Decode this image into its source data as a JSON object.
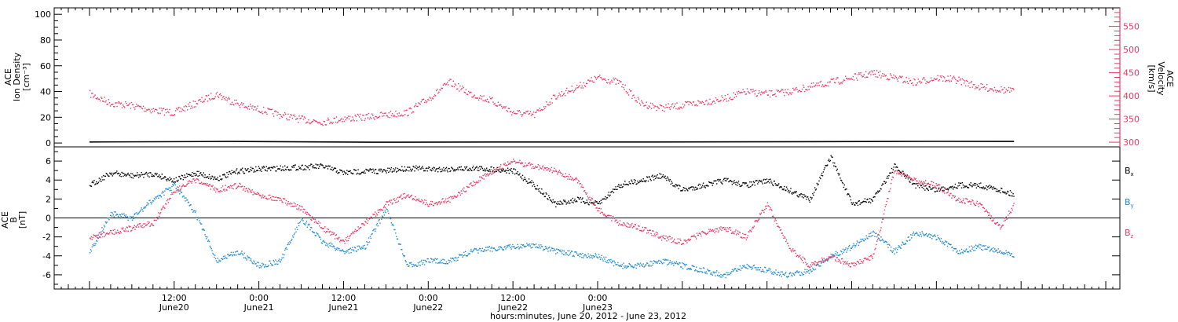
{
  "chart_data": [
    {
      "type": "scatter",
      "ylabel_left": [
        "ACE",
        "Ion Density",
        "[cm⁻³]"
      ],
      "ylabel_right": [
        "ACE",
        "Velocity",
        "[km/s]"
      ],
      "ylim_left": [
        -3,
        105
      ],
      "ylim_right": [
        290,
        590
      ],
      "yticks_left": [
        "0",
        "20",
        "40",
        "60",
        "80",
        "100"
      ],
      "yticks_right": [
        "300",
        "350",
        "400",
        "450",
        "500",
        "550"
      ],
      "series": [
        {
          "axis": "right",
          "color": "#e83a64",
          "x": [
            0,
            3,
            6,
            9,
            12,
            15,
            18,
            20,
            21,
            22,
            24,
            27,
            30,
            33,
            36,
            39,
            42,
            45,
            48,
            51,
            54,
            57,
            60,
            63,
            66,
            69,
            72,
            75,
            78,
            81,
            84,
            87,
            90,
            93,
            96,
            99,
            102,
            105,
            108,
            111,
            114,
            117,
            120,
            123,
            126,
            129,
            131
          ],
          "values": [
            405,
            385,
            380,
            370,
            365,
            385,
            405,
            390,
            385,
            378,
            372,
            360,
            350,
            345,
            352,
            355,
            360,
            365,
            395,
            430,
            405,
            390,
            365,
            360,
            400,
            420,
            440,
            430,
            385,
            375,
            380,
            388,
            395,
            410,
            405,
            410,
            420,
            430,
            440,
            450,
            440,
            430,
            440,
            435,
            420,
            415,
            410
          ]
        },
        {
          "axis": "left",
          "color": "#000000",
          "x": [
            0,
            20,
            40,
            60,
            80,
            100,
            120,
            131
          ],
          "values": [
            0.8,
            1.2,
            0.6,
            0.8,
            0.8,
            1.0,
            1.3,
            1.2
          ]
        }
      ]
    },
    {
      "type": "scatter",
      "ylabel": [
        "ACE",
        "B",
        "[nT]"
      ],
      "ylim": [
        -7.5,
        7.5
      ],
      "yticks": [
        "-6",
        "-4",
        "-2",
        "0",
        "2",
        "4",
        "6"
      ],
      "series": [
        {
          "name": "B",
          "subscript": "x",
          "color": "#000000",
          "x": [
            0,
            3,
            6,
            9,
            12,
            15,
            18,
            21,
            24,
            27,
            30,
            33,
            36,
            39,
            42,
            45,
            48,
            51,
            54,
            57,
            60,
            63,
            66,
            69,
            72,
            75,
            78,
            81,
            84,
            87,
            90,
            93,
            96,
            99,
            102,
            105,
            108,
            111,
            114,
            117,
            120,
            123,
            126,
            129,
            131
          ],
          "values": [
            3.5,
            4.8,
            4.5,
            4.7,
            4.0,
            4.8,
            4.2,
            5.0,
            5.2,
            5.3,
            5.4,
            5.5,
            4.8,
            5.0,
            5.0,
            5.3,
            5.2,
            5.2,
            5.3,
            5.2,
            5.0,
            3.5,
            1.5,
            2.0,
            1.5,
            3.5,
            4.0,
            4.5,
            3.0,
            3.5,
            4.0,
            3.5,
            4.0,
            3.0,
            2.0,
            6.5,
            1.5,
            2.0,
            5.5,
            3.5,
            3.0,
            3.5,
            3.5,
            3.0,
            2.5
          ]
        },
        {
          "name": "B",
          "subscript": "y",
          "color": "#1f8ad6",
          "x": [
            0,
            3,
            6,
            9,
            12,
            15,
            18,
            21,
            24,
            27,
            30,
            33,
            36,
            39,
            42,
            45,
            48,
            51,
            54,
            57,
            60,
            63,
            66,
            69,
            72,
            75,
            78,
            81,
            84,
            87,
            90,
            93,
            96,
            99,
            102,
            105,
            108,
            111,
            114,
            117,
            120,
            123,
            126,
            129,
            131
          ],
          "values": [
            -3.5,
            0.5,
            0.0,
            2.0,
            3.5,
            0.5,
            -4.5,
            -3.5,
            -5.0,
            -4.5,
            0.0,
            -2.5,
            -3.5,
            -3.0,
            1.0,
            -5.0,
            -4.5,
            -4.5,
            -3.5,
            -3.2,
            -3.0,
            -2.8,
            -3.5,
            -3.8,
            -4.0,
            -5.0,
            -5.0,
            -4.5,
            -5.0,
            -5.5,
            -6.0,
            -5.0,
            -5.5,
            -6.0,
            -5.5,
            -4.0,
            -3.0,
            -1.5,
            -3.5,
            -1.5,
            -2.0,
            -3.5,
            -3.0,
            -3.5,
            -4.0
          ]
        },
        {
          "name": "B",
          "subscript": "z",
          "color": "#e83a64",
          "x": [
            0,
            3,
            6,
            9,
            12,
            15,
            18,
            21,
            24,
            27,
            30,
            33,
            36,
            39,
            42,
            45,
            48,
            51,
            54,
            57,
            60,
            63,
            66,
            69,
            72,
            75,
            78,
            81,
            84,
            87,
            90,
            93,
            96,
            99,
            102,
            105,
            108,
            111,
            114,
            117,
            120,
            123,
            126,
            129,
            131
          ],
          "values": [
            -2.0,
            -1.5,
            -1.0,
            -0.5,
            3.0,
            4.0,
            3.0,
            3.5,
            2.5,
            2.0,
            1.0,
            -1.0,
            -2.5,
            -0.5,
            1.5,
            2.5,
            1.5,
            2.0,
            3.5,
            5.0,
            6.0,
            5.5,
            5.0,
            4.0,
            1.0,
            -0.5,
            -1.0,
            -2.0,
            -2.5,
            -1.5,
            -1.0,
            -2.0,
            1.5,
            -3.0,
            -5.0,
            -4.0,
            -5.0,
            -4.0,
            5.0,
            4.0,
            3.5,
            2.0,
            1.5,
            -1.0,
            1.5
          ]
        }
      ]
    }
  ],
  "x_axis": {
    "xlabel": "hours:minutes, June 20, 2012 - June 23, 2012",
    "xlim": [
      -5,
      146
    ],
    "major_ticks": [
      {
        "x": 12,
        "time": "12:00",
        "date": "June20"
      },
      {
        "x": 24,
        "time": "0:00",
        "date": "June21"
      },
      {
        "x": 36,
        "time": "12:00",
        "date": "June21"
      },
      {
        "x": 48,
        "time": "0:00",
        "date": "June22"
      },
      {
        "x": 60,
        "time": "12:00",
        "date": "June22"
      },
      {
        "x": 72,
        "time": "0:00",
        "date": "June23"
      }
    ]
  }
}
